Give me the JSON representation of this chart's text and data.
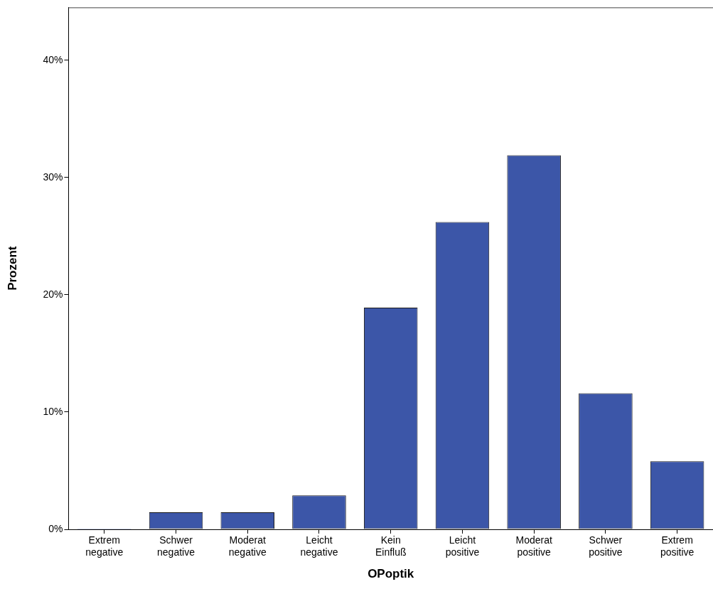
{
  "chart_data": {
    "type": "bar",
    "xlabel": "OPoptik",
    "ylabel": "Prozent",
    "categories": [
      "Extrem negative",
      "Schwer negative",
      "Moderat negative",
      "Leicht negative",
      "Kein Einfluß",
      "Leicht positive",
      "Moderat positive",
      "Schwer positive",
      "Extrem positive"
    ],
    "values": [
      0,
      1.45,
      1.45,
      2.9,
      18.9,
      26.2,
      31.9,
      11.6,
      5.8
    ],
    "color": "#3c56a8",
    "ylim": [
      0,
      44.5
    ],
    "yticks": [
      {
        "value": 0,
        "label": "0%"
      },
      {
        "value": 10,
        "label": "10%"
      },
      {
        "value": 20,
        "label": "20%"
      },
      {
        "value": 30,
        "label": "30%"
      },
      {
        "value": 40,
        "label": "40%"
      }
    ],
    "grid": false
  }
}
